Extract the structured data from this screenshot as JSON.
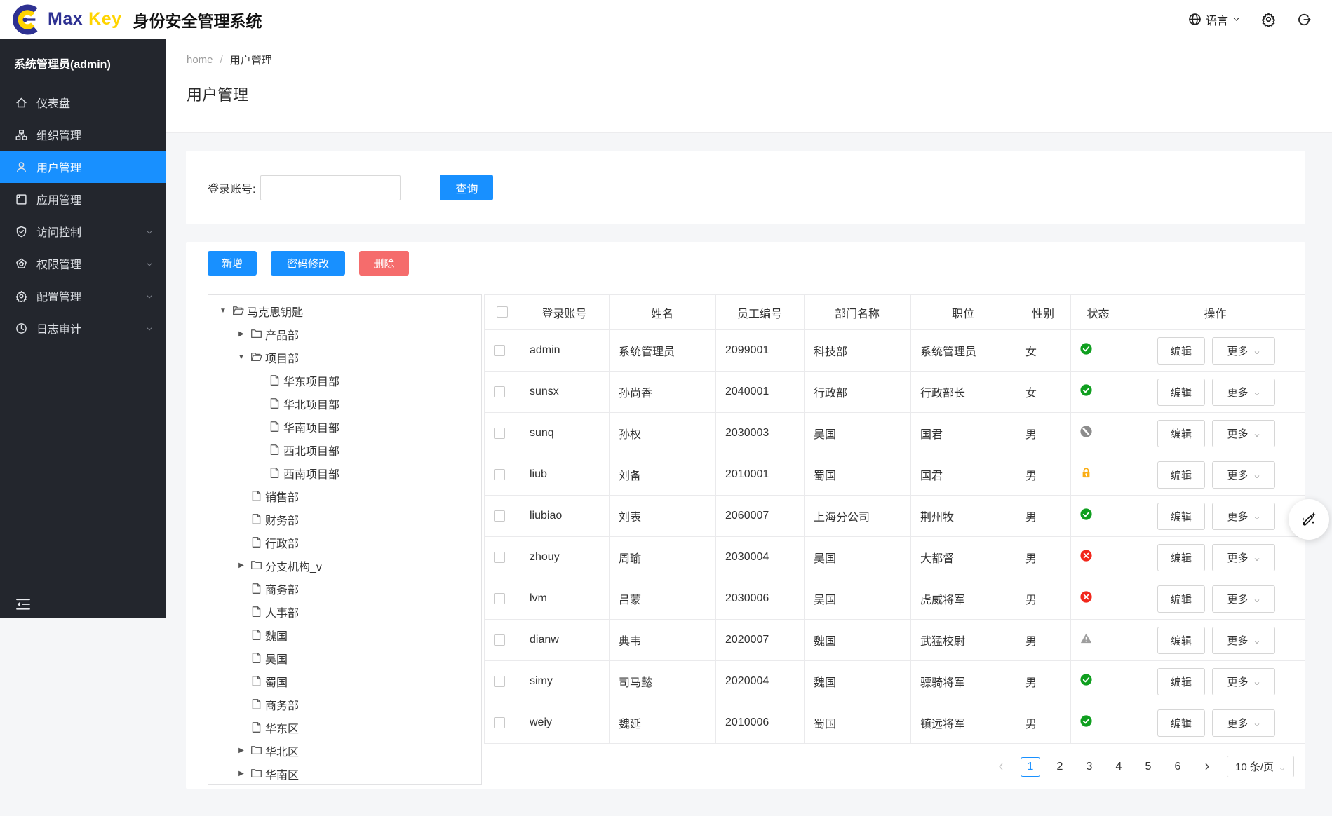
{
  "colors": {
    "accent": "#1890ff",
    "danger": "#f56c6c",
    "sidebar_bg": "#23262d",
    "status_green": "#0f9f1f",
    "status_red": "#f2271c",
    "status_orange": "#faad14",
    "status_gray": "#8c8c8c",
    "warning_gray": "#9e9e9e"
  },
  "header": {
    "brand_max": "Max",
    "brand_key": "Key",
    "product": "身份安全管理系统",
    "language": "语言",
    "language_icon": "globe-icon",
    "settings_icon": "gear-icon",
    "logout_icon": "logout-icon"
  },
  "sidebar": {
    "user": "系统管理员(admin)",
    "collapse_icon": "menu-fold-icon",
    "items": [
      {
        "label": "仪表盘",
        "icon": "home-icon",
        "active": false,
        "expandable": false
      },
      {
        "label": "组织管理",
        "icon": "org-icon",
        "active": false,
        "expandable": false
      },
      {
        "label": "用户管理",
        "icon": "user-icon",
        "active": true,
        "expandable": false
      },
      {
        "label": "应用管理",
        "icon": "app-icon",
        "active": false,
        "expandable": false
      },
      {
        "label": "访问控制",
        "icon": "shield-icon",
        "active": false,
        "expandable": true
      },
      {
        "label": "权限管理",
        "icon": "gem-icon",
        "active": false,
        "expandable": true
      },
      {
        "label": "配置管理",
        "icon": "gear-icon",
        "active": false,
        "expandable": true
      },
      {
        "label": "日志审计",
        "icon": "clock-icon",
        "active": false,
        "expandable": true
      }
    ]
  },
  "breadcrumb": {
    "home": "home",
    "separator": "/",
    "current": "用户管理"
  },
  "page": {
    "title": "用户管理"
  },
  "search": {
    "label": "登录账号:",
    "value": "",
    "button": "查询"
  },
  "toolbar": {
    "add": "新增",
    "change_password": "密码修改",
    "delete": "删除"
  },
  "tree": {
    "nodes": [
      {
        "label": "马克思钥匙",
        "level": 0,
        "icon": "folder-open-icon",
        "expander": "expanded"
      },
      {
        "label": "产品部",
        "level": 1,
        "icon": "folder-icon",
        "expander": "collapsed"
      },
      {
        "label": "项目部",
        "level": 1,
        "icon": "folder-open-icon",
        "expander": "expanded"
      },
      {
        "label": "华东项目部",
        "level": 2,
        "icon": "file-icon",
        "expander": "none"
      },
      {
        "label": "华北项目部",
        "level": 2,
        "icon": "file-icon",
        "expander": "none"
      },
      {
        "label": "华南项目部",
        "level": 2,
        "icon": "file-icon",
        "expander": "none"
      },
      {
        "label": "西北项目部",
        "level": 2,
        "icon": "file-icon",
        "expander": "none"
      },
      {
        "label": "西南项目部",
        "level": 2,
        "icon": "file-icon",
        "expander": "none"
      },
      {
        "label": "销售部",
        "level": 1,
        "icon": "file-icon",
        "expander": "none"
      },
      {
        "label": "财务部",
        "level": 1,
        "icon": "file-icon",
        "expander": "none"
      },
      {
        "label": "行政部",
        "level": 1,
        "icon": "file-icon",
        "expander": "none"
      },
      {
        "label": "分支机构_v",
        "level": 1,
        "icon": "folder-icon",
        "expander": "collapsed"
      },
      {
        "label": "商务部",
        "level": 1,
        "icon": "file-icon",
        "expander": "none"
      },
      {
        "label": "人事部",
        "level": 1,
        "icon": "file-icon",
        "expander": "none"
      },
      {
        "label": "魏国",
        "level": 1,
        "icon": "file-icon",
        "expander": "none"
      },
      {
        "label": "吴国",
        "level": 1,
        "icon": "file-icon",
        "expander": "none"
      },
      {
        "label": "蜀国",
        "level": 1,
        "icon": "file-icon",
        "expander": "none"
      },
      {
        "label": "商务部",
        "level": 1,
        "icon": "file-icon",
        "expander": "none"
      },
      {
        "label": "华东区",
        "level": 1,
        "icon": "file-icon",
        "expander": "none"
      },
      {
        "label": "华北区",
        "level": 1,
        "icon": "folder-icon",
        "expander": "collapsed"
      },
      {
        "label": "华南区",
        "level": 1,
        "icon": "folder-icon",
        "expander": "collapsed"
      }
    ]
  },
  "table": {
    "columns": [
      "登录账号",
      "姓名",
      "员工编号",
      "部门名称",
      "职位",
      "性别",
      "状态",
      "操作"
    ],
    "edit_label": "编辑",
    "more_label": "更多",
    "rows": [
      {
        "account": "admin",
        "name": "系统管理员",
        "employee_id": "2099001",
        "department": "科技部",
        "position": "系统管理员",
        "gender": "女",
        "status": "enabled"
      },
      {
        "account": "sunsx",
        "name": "孙尚香",
        "employee_id": "2040001",
        "department": "行政部",
        "position": "行政部长",
        "gender": "女",
        "status": "enabled"
      },
      {
        "account": "sunq",
        "name": "孙权",
        "employee_id": "2030003",
        "department": "吴国",
        "position": "国君",
        "gender": "男",
        "status": "forbidden"
      },
      {
        "account": "liub",
        "name": "刘备",
        "employee_id": "2010001",
        "department": "蜀国",
        "position": "国君",
        "gender": "男",
        "status": "locked"
      },
      {
        "account": "liubiao",
        "name": "刘表",
        "employee_id": "2060007",
        "department": "上海分公司",
        "position": "荆州牧",
        "gender": "男",
        "status": "enabled"
      },
      {
        "account": "zhouy",
        "name": "周瑜",
        "employee_id": "2030004",
        "department": "吴国",
        "position": "大都督",
        "gender": "男",
        "status": "disabled"
      },
      {
        "account": "lvm",
        "name": "吕蒙",
        "employee_id": "2030006",
        "department": "吴国",
        "position": "虎威将军",
        "gender": "男",
        "status": "disabled"
      },
      {
        "account": "dianw",
        "name": "典韦",
        "employee_id": "2020007",
        "department": "魏国",
        "position": "武猛校尉",
        "gender": "男",
        "status": "warning"
      },
      {
        "account": "simy",
        "name": "司马懿",
        "employee_id": "2020004",
        "department": "魏国",
        "position": "骠骑将军",
        "gender": "男",
        "status": "enabled"
      },
      {
        "account": "weiy",
        "name": "魏延",
        "employee_id": "2010006",
        "department": "蜀国",
        "position": "镇远将军",
        "gender": "男",
        "status": "enabled"
      }
    ]
  },
  "pagination": {
    "prev": "‹",
    "next": "›",
    "pages": [
      "1",
      "2",
      "3",
      "4",
      "5",
      "6"
    ],
    "active_page": "1",
    "page_size": "10 条/页"
  },
  "fab_icon": "magic-wand-icon"
}
